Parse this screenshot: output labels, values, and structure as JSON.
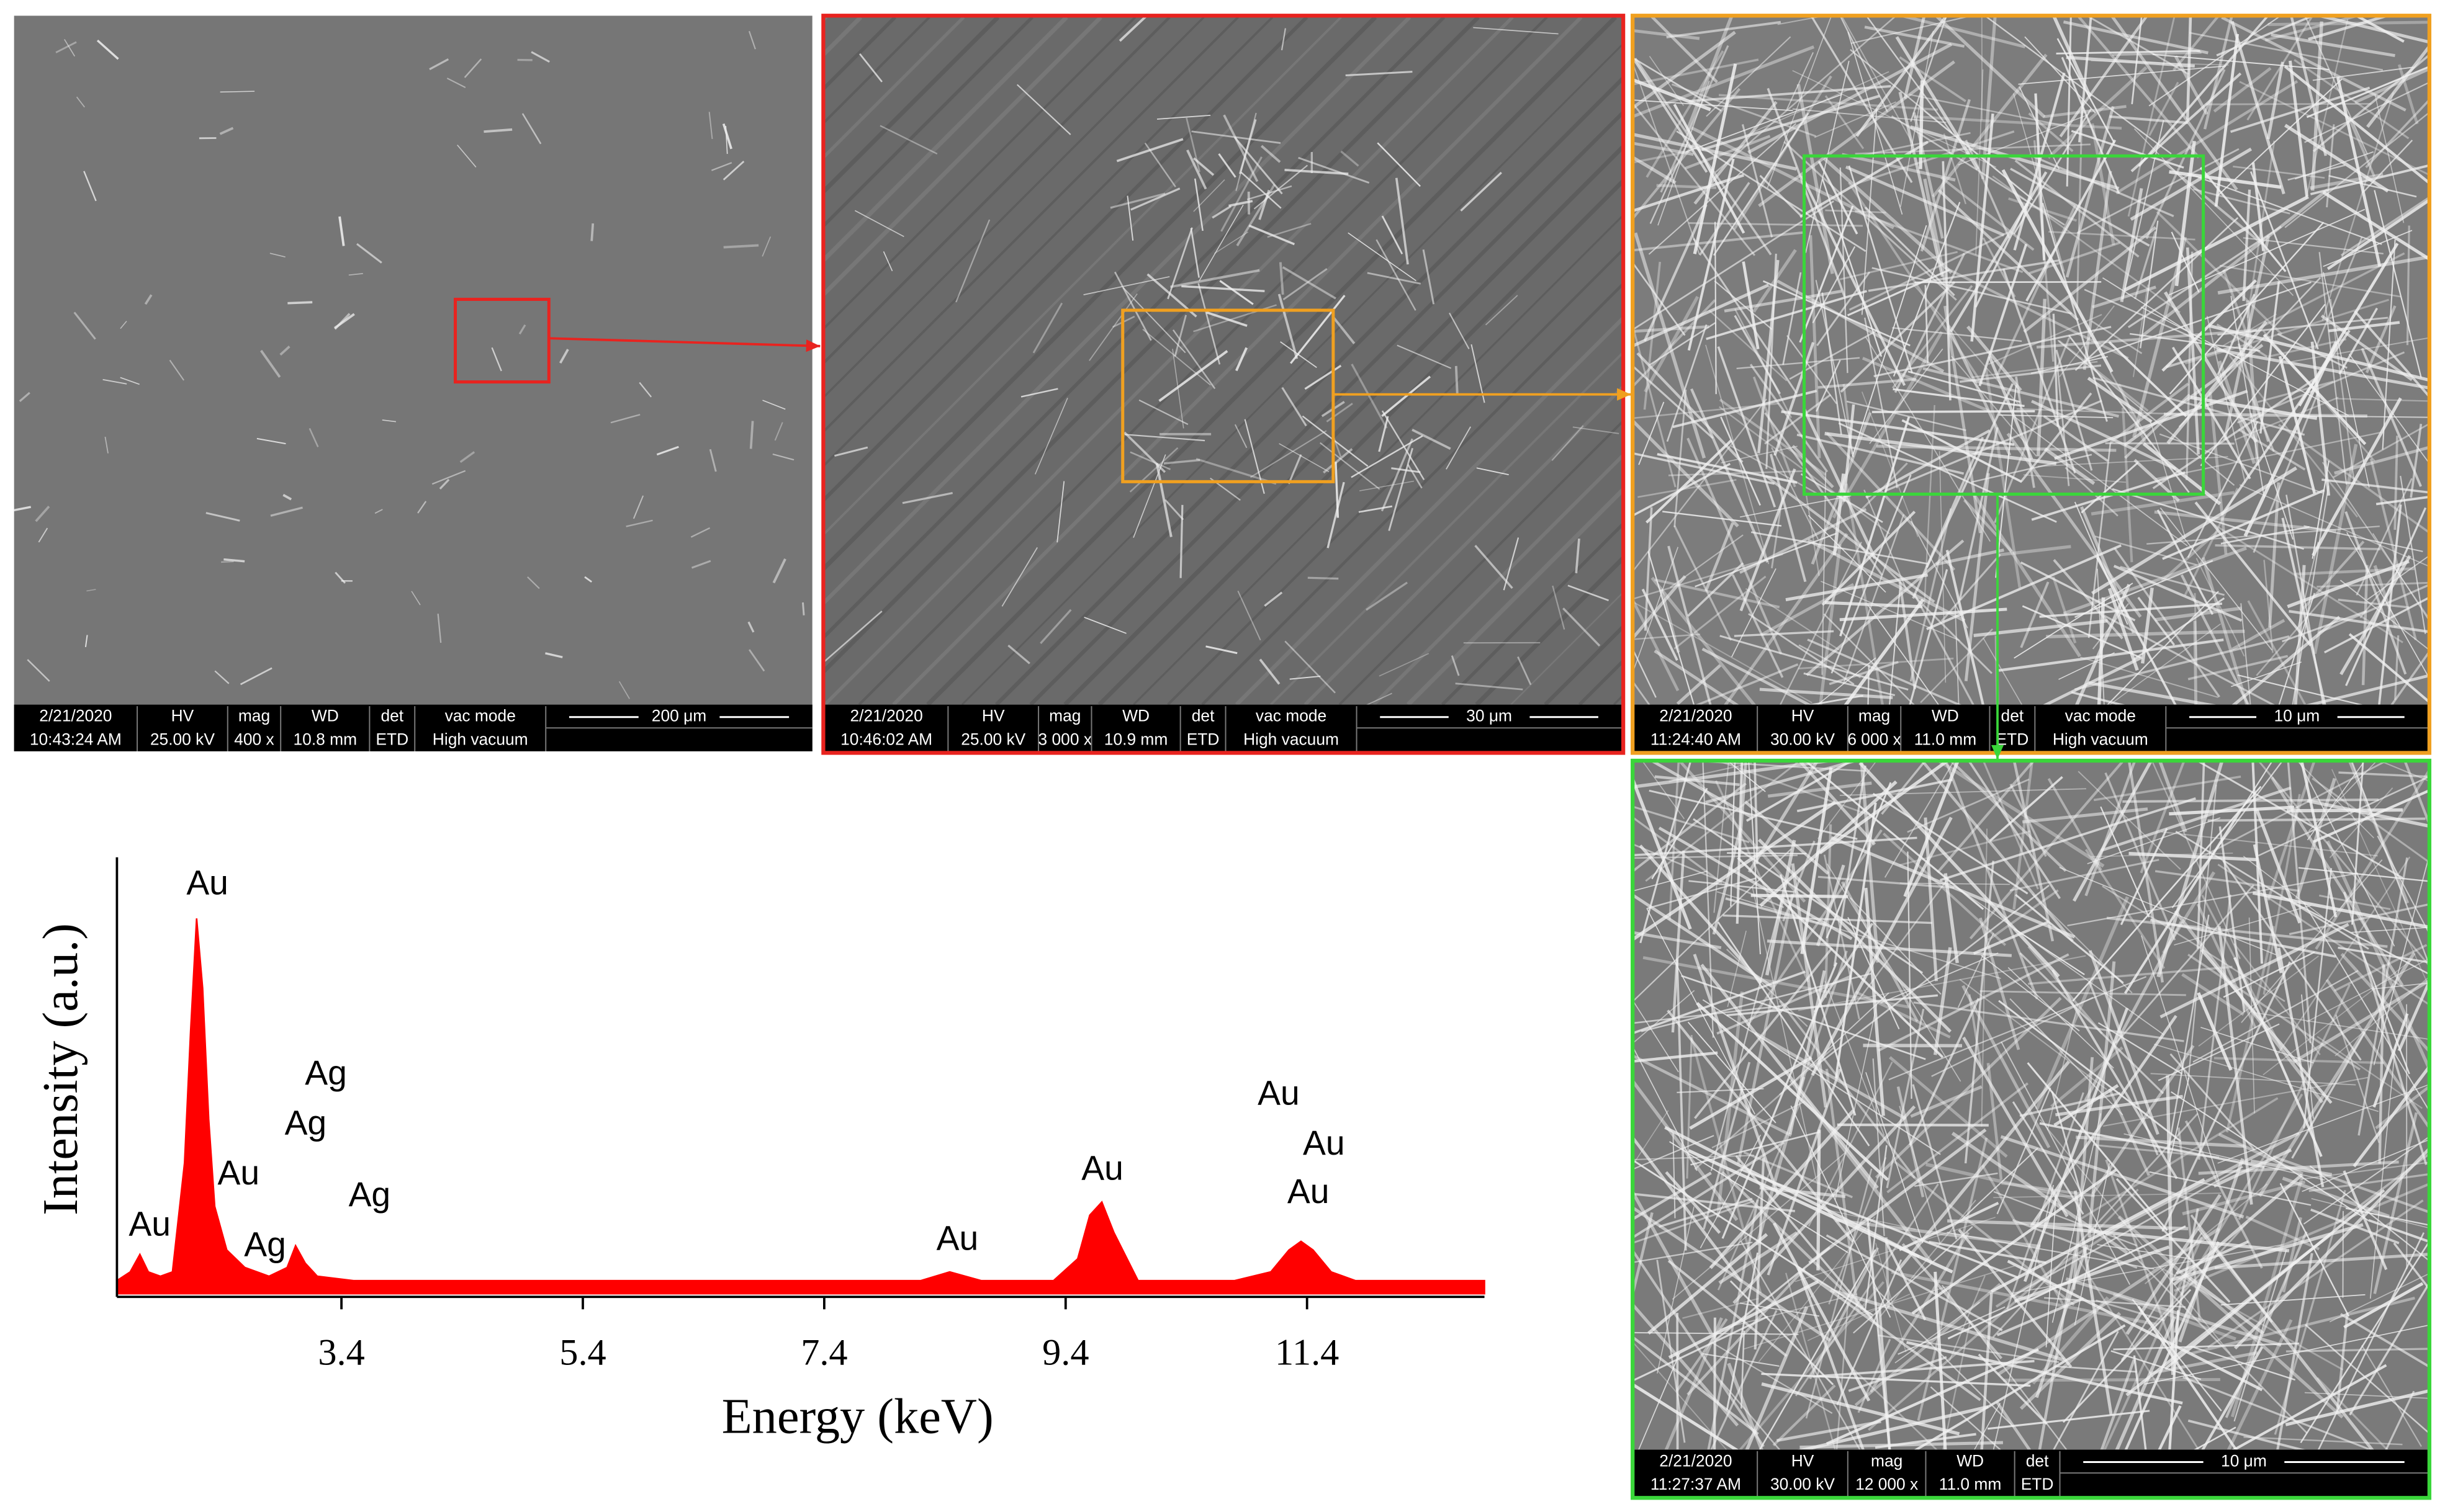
{
  "sem_panels": [
    {
      "date": "2/21/2020",
      "time": "10:43:24 AM",
      "hv_label": "HV",
      "hv": "25.00 kV",
      "mag_label": "mag",
      "mag": "400 x",
      "wd_label": "WD",
      "wd": "10.8 mm",
      "det_label": "det",
      "det": "ETD",
      "vac_label": "vac mode",
      "vac": "High vacuum",
      "scale": "200 μm"
    },
    {
      "date": "2/21/2020",
      "time": "10:46:02 AM",
      "hv_label": "HV",
      "hv": "25.00 kV",
      "mag_label": "mag",
      "mag": "3 000 x",
      "wd_label": "WD",
      "wd": "10.9 mm",
      "det_label": "det",
      "det": "ETD",
      "vac_label": "vac mode",
      "vac": "High vacuum",
      "scale": "30 μm"
    },
    {
      "date": "2/21/2020",
      "time": "11:24:40 AM",
      "hv_label": "HV",
      "hv": "30.00 kV",
      "mag_label": "mag",
      "mag": "6 000 x",
      "wd_label": "WD",
      "wd": "11.0 mm",
      "det_label": "det",
      "det": "ETD",
      "vac_label": "vac mode",
      "vac": "High vacuum",
      "scale": "10 μm"
    },
    {
      "date": "2/21/2020",
      "time": "11:27:37 AM",
      "hv_label": "HV",
      "hv": "30.00 kV",
      "mag_label": "mag",
      "mag": "12 000 x",
      "wd_label": "WD",
      "wd": "11.0 mm",
      "det_label": "det",
      "det": "ETD",
      "scale": "10 μm"
    }
  ],
  "chart_data": {
    "type": "area",
    "xlabel": "Energy (keV)",
    "ylabel": "Intensity (a.u.)",
    "color": "#ff0000",
    "x": [
      1.54,
      1.65,
      1.73,
      1.8,
      1.9,
      2.0,
      2.1,
      2.15,
      2.2,
      2.25,
      2.3,
      2.35,
      2.45,
      2.6,
      2.8,
      2.95,
      3.02,
      3.1,
      3.2,
      3.5,
      5.0,
      7.0,
      8.2,
      8.44,
      8.7,
      9.3,
      9.5,
      9.6,
      9.7,
      9.8,
      10.0,
      10.8,
      11.1,
      11.25,
      11.35,
      11.45,
      11.6,
      11.8,
      12.87
    ],
    "values": [
      3,
      5,
      9,
      5,
      4,
      5,
      30,
      60,
      86,
      70,
      40,
      20,
      10,
      6,
      4,
      6,
      11,
      7,
      4,
      3,
      3,
      3,
      3,
      5,
      3,
      3,
      8,
      18,
      21,
      14,
      3,
      3,
      5,
      10,
      12,
      10,
      5,
      3,
      3
    ],
    "xlim": [
      1.54,
      12.87
    ],
    "ylim": [
      0,
      100
    ],
    "xticks": [
      3.4,
      5.4,
      7.4,
      9.4,
      11.4
    ],
    "annotations": [
      "Au",
      "Ag",
      "Ag",
      "Au",
      "Ag",
      "Au",
      "Ag",
      "Au",
      "Au",
      "Au",
      "Au",
      "Au"
    ]
  }
}
